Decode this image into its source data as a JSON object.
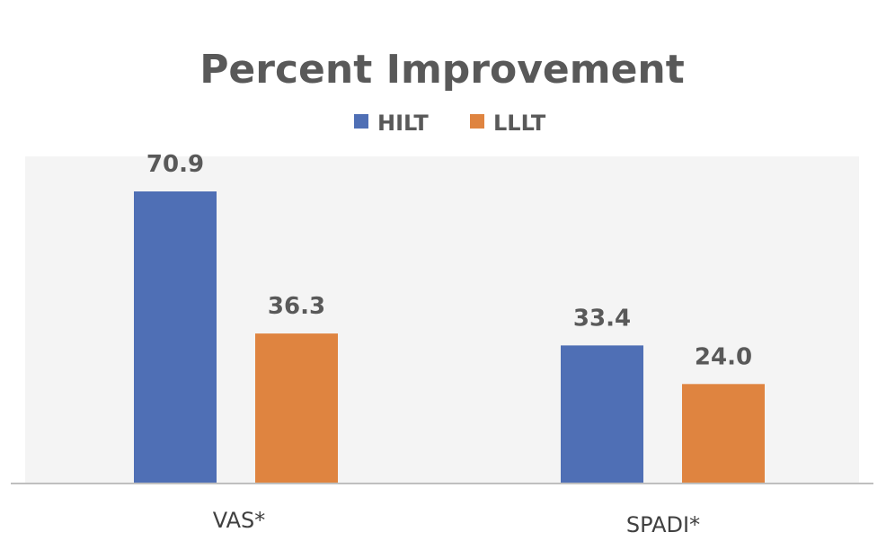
{
  "chart_data": {
    "type": "bar",
    "title": "Percent Improvement",
    "categories": [
      "VAS*",
      "SPADI*"
    ],
    "series": [
      {
        "name": "HILT",
        "values": [
          70.9,
          33.4
        ],
        "color": "#4f6fb5"
      },
      {
        "name": "LLLT",
        "values": [
          36.3,
          24.0
        ],
        "color": "#df8440"
      }
    ],
    "value_labels": [
      [
        "70.9",
        "33.4"
      ],
      [
        "36.3",
        "24.0"
      ]
    ],
    "ylim": [
      0,
      80
    ],
    "legend_position": "top-center",
    "grid": false,
    "plot_background": "#f4f4f4",
    "axis_color": "#bfbfbf"
  }
}
